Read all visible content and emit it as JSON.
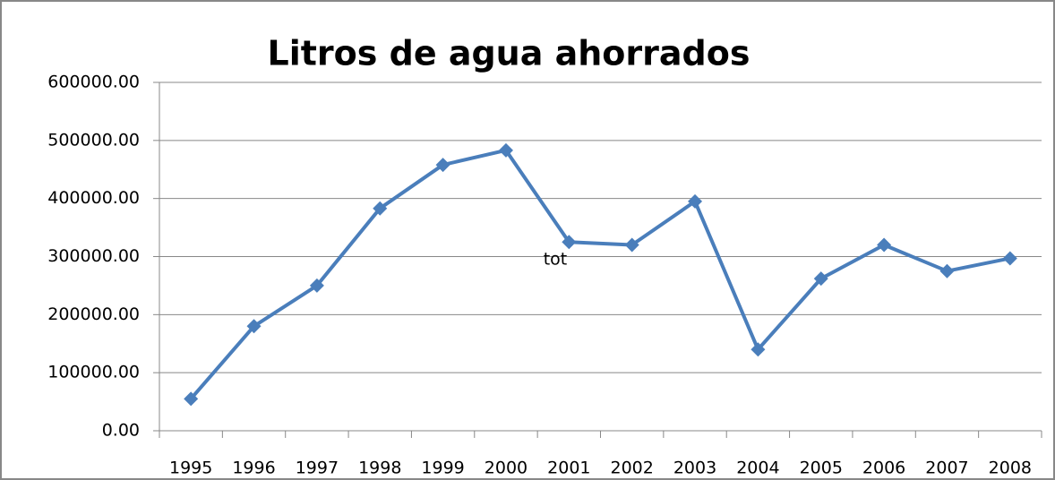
{
  "chart_data": {
    "type": "line",
    "title": "Litros de agua ahorrados",
    "annotation": "tot",
    "categories": [
      "1995",
      "1996",
      "1997",
      "1998",
      "1999",
      "2000",
      "2001",
      "2002",
      "2003",
      "2004",
      "2005",
      "2006",
      "2007",
      "2008"
    ],
    "values": [
      55000,
      180000,
      250000,
      383000,
      458000,
      483000,
      325000,
      320000,
      395000,
      140000,
      262000,
      320000,
      275000,
      297000
    ],
    "color": "#4a7ebb",
    "ylim": [
      0,
      600000
    ],
    "yticks": [
      {
        "value": 0,
        "label": "0.00"
      },
      {
        "value": 100000,
        "label": "100000.00"
      },
      {
        "value": 200000,
        "label": "200000.00"
      },
      {
        "value": 300000,
        "label": "300000.00"
      },
      {
        "value": 400000,
        "label": "400000.00"
      },
      {
        "value": 500000,
        "label": "500000.00"
      },
      {
        "value": 600000,
        "label": "600000.00"
      }
    ],
    "grid": true
  }
}
